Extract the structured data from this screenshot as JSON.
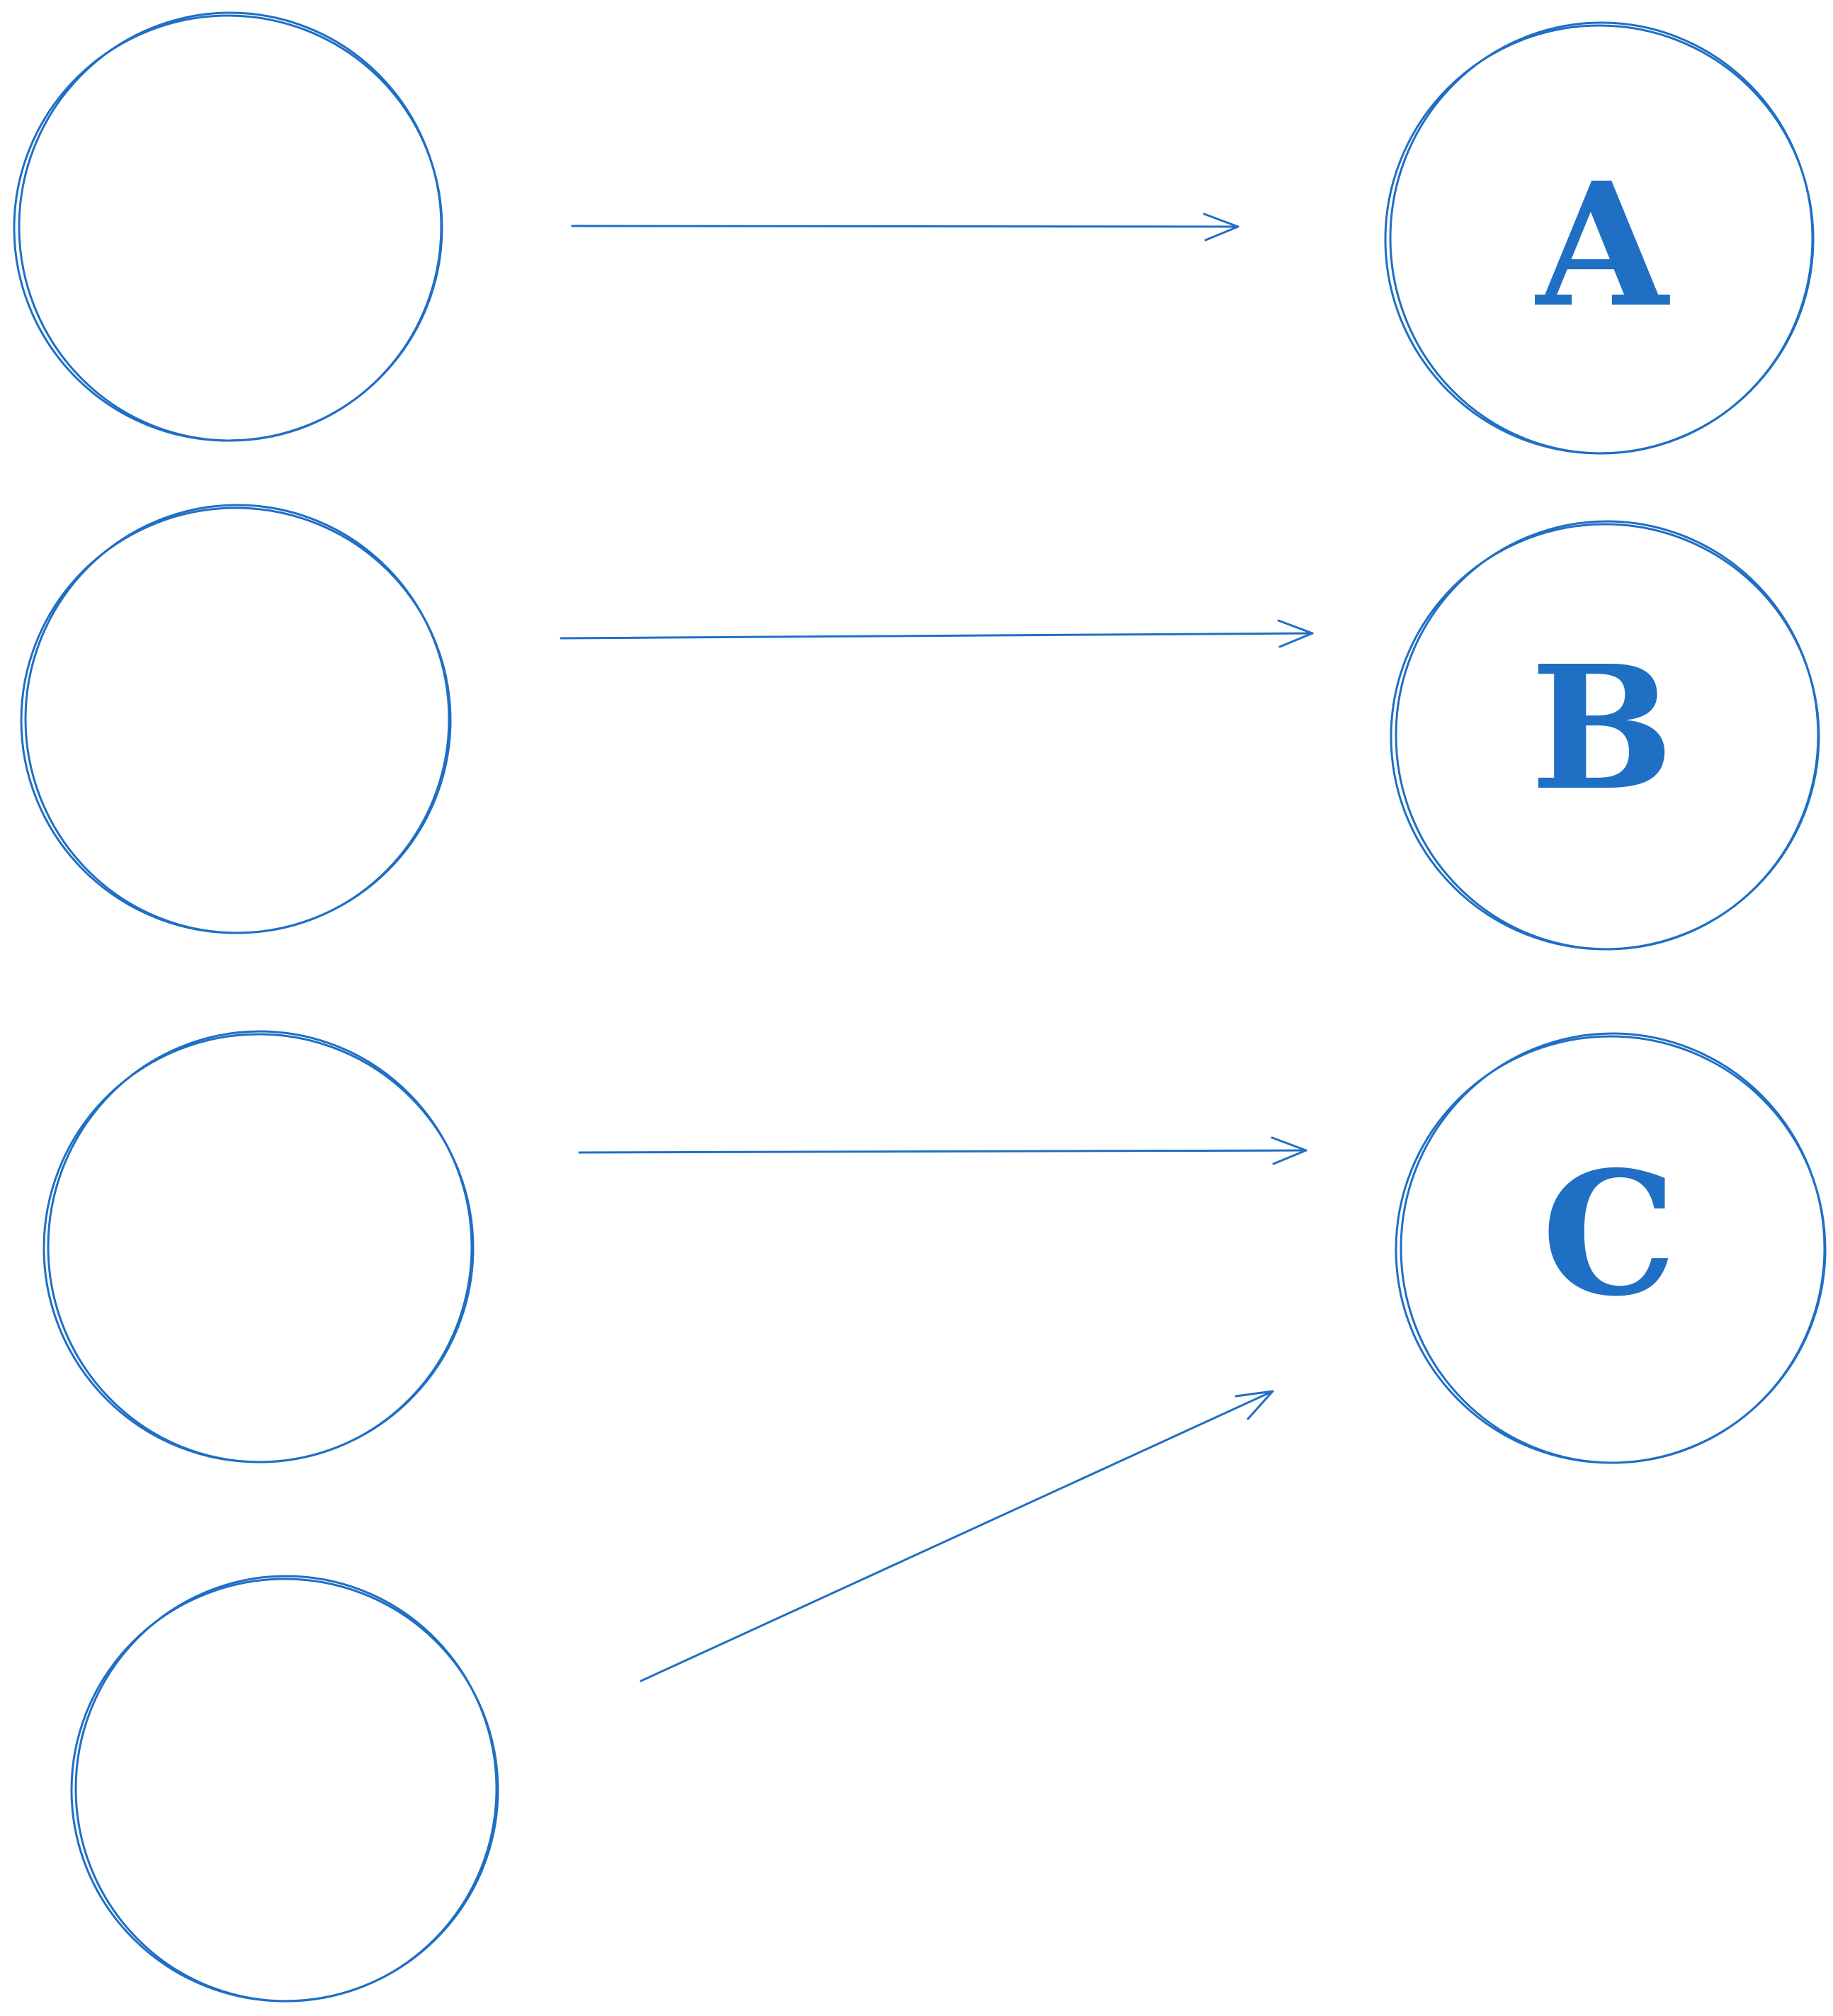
{
  "diagram": {
    "stroke_color": "#1f6fc5",
    "left_nodes": [
      {
        "id": "L1"
      },
      {
        "id": "L2"
      },
      {
        "id": "L3"
      },
      {
        "id": "L4"
      }
    ],
    "right_nodes": [
      {
        "id": "A",
        "label": "A"
      },
      {
        "id": "B",
        "label": "B"
      },
      {
        "id": "C",
        "label": "C"
      }
    ],
    "edges": [
      {
        "from": "L1",
        "to": "A"
      },
      {
        "from": "L2",
        "to": "B"
      },
      {
        "from": "L3",
        "to": "C"
      },
      {
        "from": "L4",
        "to": "C"
      }
    ]
  }
}
